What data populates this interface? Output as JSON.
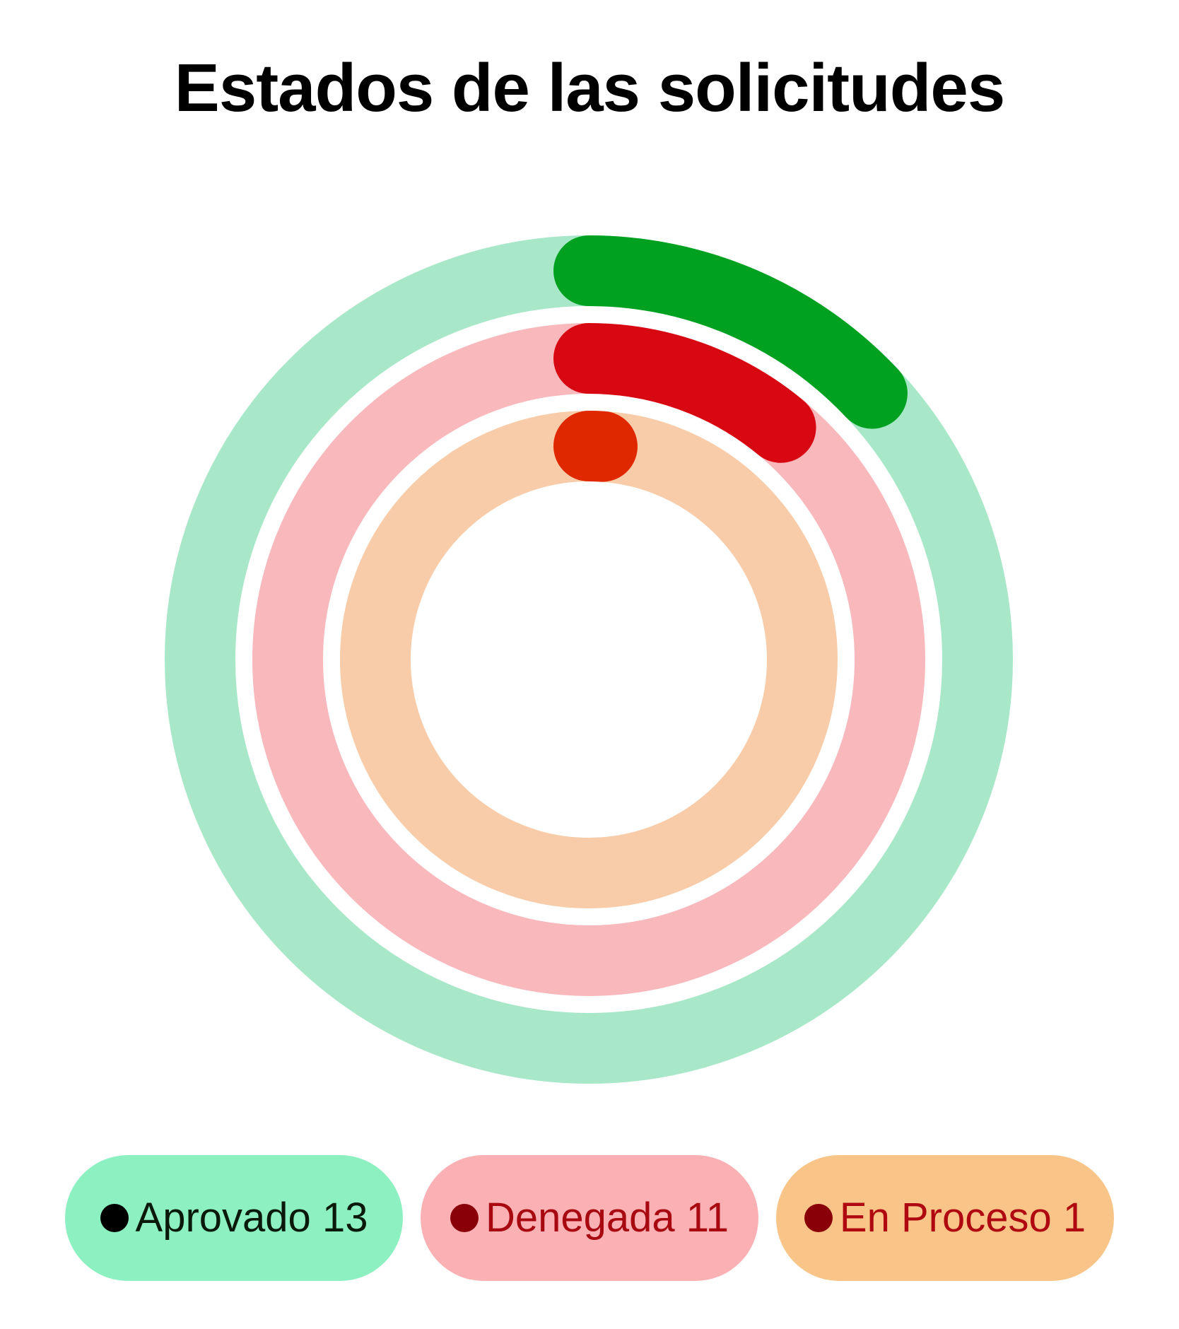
{
  "chart_data": {
    "type": "radial-bar",
    "title": "Estados de las solicitudes",
    "series": [
      {
        "name": "Aprovado",
        "value": 13,
        "color": "#00a020",
        "track_color": "#a8e8c8",
        "legend_bg": "#8cf0c0",
        "legend_text_color": "#0a1a0a",
        "legend_dot_color": "#000000"
      },
      {
        "name": "Denegada",
        "value": 11,
        "color": "#d80812",
        "track_color": "#f8b8bc",
        "legend_bg": "#fbb0b4",
        "legend_text_color": "#a80810",
        "legend_dot_color": "#8a0008"
      },
      {
        "name": "En Proceso",
        "value": 1,
        "color": "#e02800",
        "track_color": "#f8cca8",
        "legend_bg": "#f8c488",
        "legend_text_color": "#b00810",
        "legend_dot_color": "#8a0008"
      }
    ]
  }
}
